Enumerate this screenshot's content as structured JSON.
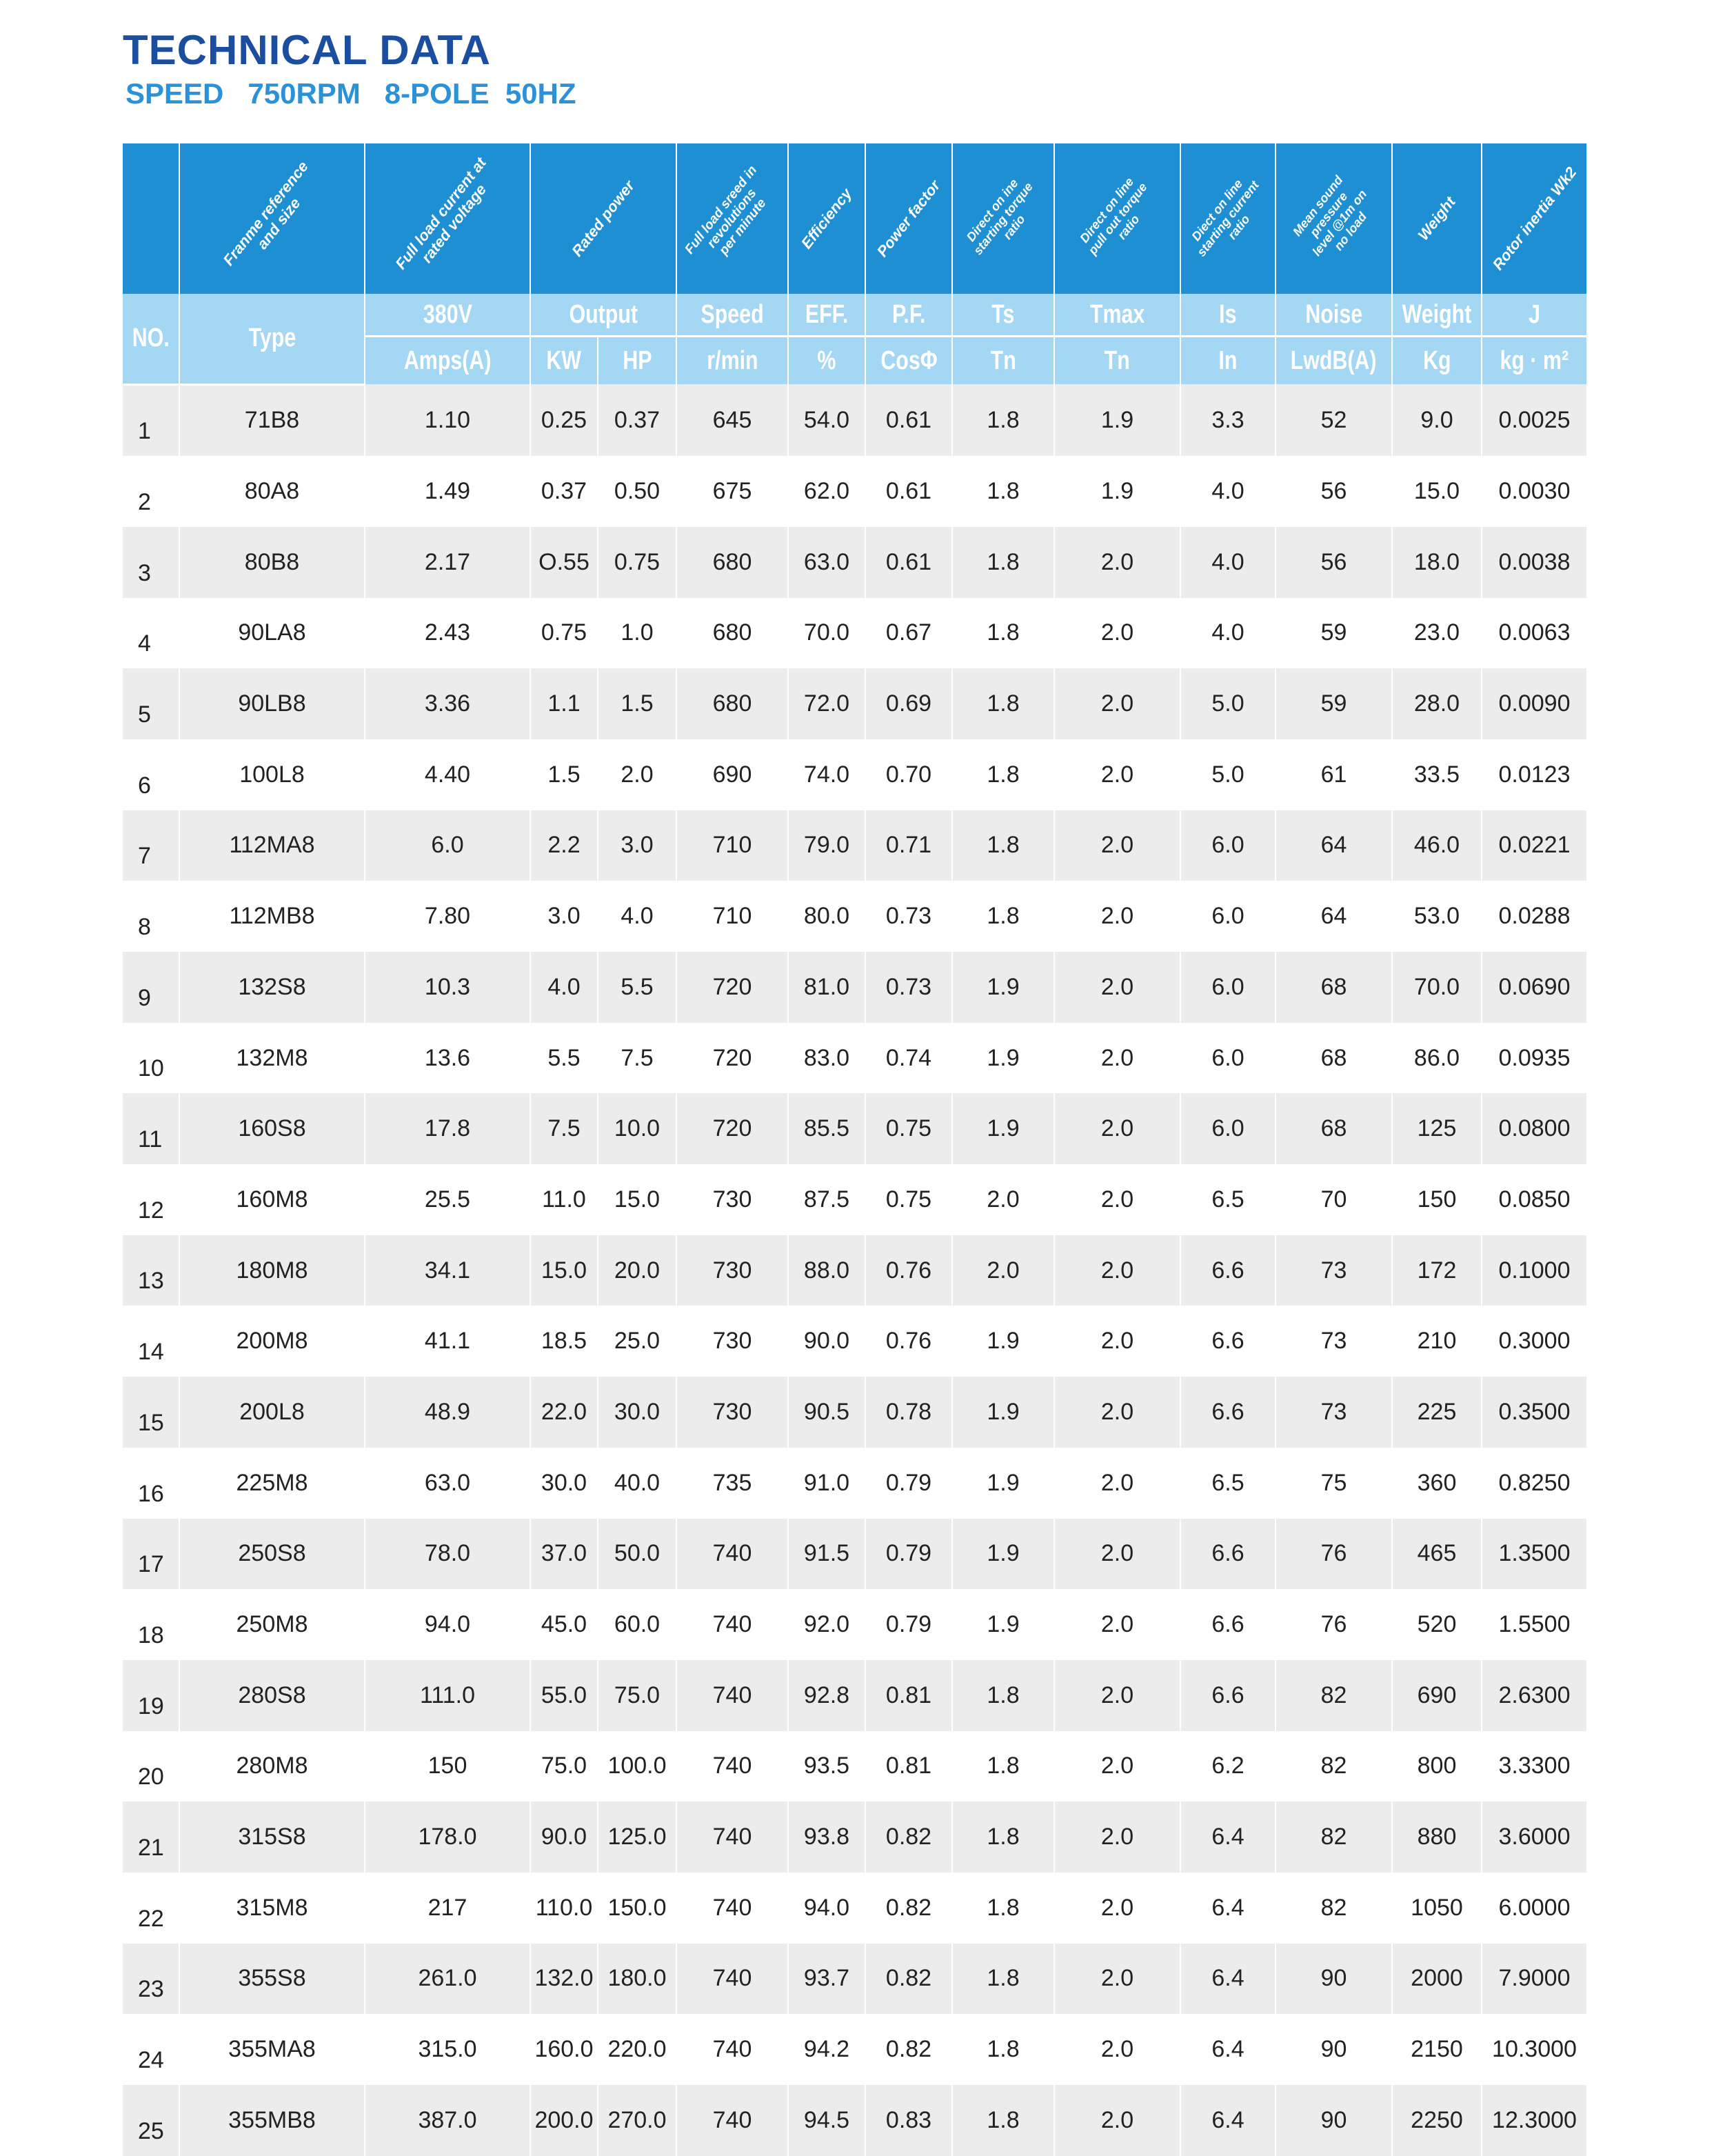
{
  "title": "TECHNICAL DATA",
  "subtitle": "SPEED   750RPM   8-POLE  50HZ",
  "header_descriptions": [
    "",
    "Franme reference\nand size",
    "Full load current at\nrated voltage",
    "Rated power",
    "Full load sreed in\nrevolutions\nper minute",
    "Efficiency",
    "Power factor",
    "Direct on ine\nstarting torque\nratio",
    "Direct on line\npull out torque\nratio",
    "Diect on line\nstarting current\nratio",
    "Mean sound\npressure\nlevel @1m on\nno load",
    "Weight",
    "Rotor inertia Wk2"
  ],
  "header_row1": {
    "no": "NO.",
    "type": "Type",
    "v380": "380V",
    "output": "Output",
    "speed": "Speed",
    "eff": "EFF.",
    "pf": "P.F.",
    "ts": "Ts",
    "tmax": "Tmax",
    "is": "Is",
    "noise": "Noise",
    "weight": "Weight",
    "j": "J"
  },
  "header_row2": {
    "amps": "Amps(A)",
    "kw": "KW",
    "hp": "HP",
    "rmin": "r/min",
    "pct": "%",
    "cos": "CosΦ",
    "tn1": "Tn",
    "tn2": "Tn",
    "in": "In",
    "lwdb": "LwdB(A)",
    "kg": "Kg",
    "kgm2": "kg · m²"
  },
  "rows": [
    [
      "1",
      "71B8",
      "1.10",
      "0.25",
      "0.37",
      "645",
      "54.0",
      "0.61",
      "1.8",
      "1.9",
      "3.3",
      "52",
      "9.0",
      "0.0025"
    ],
    [
      "2",
      "80A8",
      "1.49",
      "0.37",
      "0.50",
      "675",
      "62.0",
      "0.61",
      "1.8",
      "1.9",
      "4.0",
      "56",
      "15.0",
      "0.0030"
    ],
    [
      "3",
      "80B8",
      "2.17",
      "O.55",
      "0.75",
      "680",
      "63.0",
      "0.61",
      "1.8",
      "2.0",
      "4.0",
      "56",
      "18.0",
      "0.0038"
    ],
    [
      "4",
      "90LA8",
      "2.43",
      "0.75",
      "1.0",
      "680",
      "70.0",
      "0.67",
      "1.8",
      "2.0",
      "4.0",
      "59",
      "23.0",
      "0.0063"
    ],
    [
      "5",
      "90LB8",
      "3.36",
      "1.1",
      "1.5",
      "680",
      "72.0",
      "0.69",
      "1.8",
      "2.0",
      "5.0",
      "59",
      "28.0",
      "0.0090"
    ],
    [
      "6",
      "100L8",
      "4.40",
      "1.5",
      "2.0",
      "690",
      "74.0",
      "0.70",
      "1.8",
      "2.0",
      "5.0",
      "61",
      "33.5",
      "0.0123"
    ],
    [
      "7",
      "112MA8",
      "6.0",
      "2.2",
      "3.0",
      "710",
      "79.0",
      "0.71",
      "1.8",
      "2.0",
      "6.0",
      "64",
      "46.0",
      "0.0221"
    ],
    [
      "8",
      "112MB8",
      "7.80",
      "3.0",
      "4.0",
      "710",
      "80.0",
      "0.73",
      "1.8",
      "2.0",
      "6.0",
      "64",
      "53.0",
      "0.0288"
    ],
    [
      "9",
      "132S8",
      "10.3",
      "4.0",
      "5.5",
      "720",
      "81.0",
      "0.73",
      "1.9",
      "2.0",
      "6.0",
      "68",
      "70.0",
      "0.0690"
    ],
    [
      "10",
      "132M8",
      "13.6",
      "5.5",
      "7.5",
      "720",
      "83.0",
      "0.74",
      "1.9",
      "2.0",
      "6.0",
      "68",
      "86.0",
      "0.0935"
    ],
    [
      "11",
      "160S8",
      "17.8",
      "7.5",
      "10.0",
      "720",
      "85.5",
      "0.75",
      "1.9",
      "2.0",
      "6.0",
      "68",
      "125",
      "0.0800"
    ],
    [
      "12",
      "160M8",
      "25.5",
      "11.0",
      "15.0",
      "730",
      "87.5",
      "0.75",
      "2.0",
      "2.0",
      "6.5",
      "70",
      "150",
      "0.0850"
    ],
    [
      "13",
      "180M8",
      "34.1",
      "15.0",
      "20.0",
      "730",
      "88.0",
      "0.76",
      "2.0",
      "2.0",
      "6.6",
      "73",
      "172",
      "0.1000"
    ],
    [
      "14",
      "200M8",
      "41.1",
      "18.5",
      "25.0",
      "730",
      "90.0",
      "0.76",
      "1.9",
      "2.0",
      "6.6",
      "73",
      "210",
      "0.3000"
    ],
    [
      "15",
      "200L8",
      "48.9",
      "22.0",
      "30.0",
      "730",
      "90.5",
      "0.78",
      "1.9",
      "2.0",
      "6.6",
      "73",
      "225",
      "0.3500"
    ],
    [
      "16",
      "225M8",
      "63.0",
      "30.0",
      "40.0",
      "735",
      "91.0",
      "0.79",
      "1.9",
      "2.0",
      "6.5",
      "75",
      "360",
      "0.8250"
    ],
    [
      "17",
      "250S8",
      "78.0",
      "37.0",
      "50.0",
      "740",
      "91.5",
      "0.79",
      "1.9",
      "2.0",
      "6.6",
      "76",
      "465",
      "1.3500"
    ],
    [
      "18",
      "250M8",
      "94.0",
      "45.0",
      "60.0",
      "740",
      "92.0",
      "0.79",
      "1.9",
      "2.0",
      "6.6",
      "76",
      "520",
      "1.5500"
    ],
    [
      "19",
      "280S8",
      "111.0",
      "55.0",
      "75.0",
      "740",
      "92.8",
      "0.81",
      "1.8",
      "2.0",
      "6.6",
      "82",
      "690",
      "2.6300"
    ],
    [
      "20",
      "280M8",
      "150",
      "75.0",
      "100.0",
      "740",
      "93.5",
      "0.81",
      "1.8",
      "2.0",
      "6.2",
      "82",
      "800",
      "3.3300"
    ],
    [
      "21",
      "315S8",
      "178.0",
      "90.0",
      "125.0",
      "740",
      "93.8",
      "0.82",
      "1.8",
      "2.0",
      "6.4",
      "82",
      "880",
      "3.6000"
    ],
    [
      "22",
      "315M8",
      "217",
      "110.0",
      "150.0",
      "740",
      "94.0",
      "0.82",
      "1.8",
      "2.0",
      "6.4",
      "82",
      "1050",
      "6.0000"
    ],
    [
      "23",
      "355S8",
      "261.0",
      "132.0",
      "180.0",
      "740",
      "93.7",
      "0.82",
      "1.8",
      "2.0",
      "6.4",
      "90",
      "2000",
      "7.9000"
    ],
    [
      "24",
      "355MA8",
      "315.0",
      "160.0",
      "220.0",
      "740",
      "94.2",
      "0.82",
      "1.8",
      "2.0",
      "6.4",
      "90",
      "2150",
      "10.3000"
    ],
    [
      "25",
      "355MB8",
      "387.0",
      "200.0",
      "270.0",
      "740",
      "94.5",
      "0.83",
      "1.8",
      "2.0",
      "6.4",
      "90",
      "2250",
      "12.3000"
    ]
  ]
}
